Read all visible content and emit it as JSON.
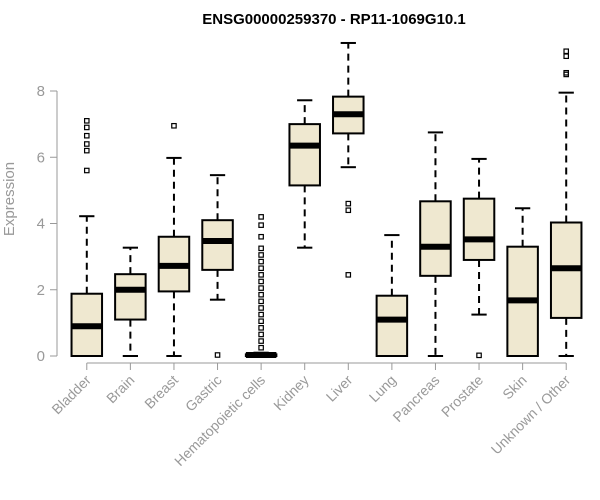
{
  "chart_data": {
    "type": "box",
    "title": "ENSG00000259370 - RP11-1069G10.1",
    "xlabel": "",
    "ylabel": "Expression",
    "ylim": [
      0,
      9.6
    ],
    "yticks": [
      0,
      2,
      4,
      6,
      8
    ],
    "box_fill": "#efe8d0",
    "categories": [
      "Bladder",
      "Brain",
      "Breast",
      "Gastric",
      "Hematopoietic cells",
      "Kidney",
      "Liver",
      "Lung",
      "Pancreas",
      "Prostate",
      "Skin",
      "Unknown / Other"
    ],
    "boxes": [
      {
        "min": 0,
        "q1": 0,
        "median": 0.9,
        "q3": 1.88,
        "max": 4.22,
        "outliers": [
          5.6,
          6.2,
          6.4,
          6.65,
          6.9,
          7.1
        ]
      },
      {
        "min": 0,
        "q1": 1.1,
        "median": 2.0,
        "q3": 2.47,
        "max": 3.27,
        "outliers": []
      },
      {
        "min": 0,
        "q1": 1.95,
        "median": 2.72,
        "q3": 3.6,
        "max": 5.98,
        "outliers": [
          6.95
        ]
      },
      {
        "min": 1.7,
        "q1": 2.6,
        "median": 3.47,
        "q3": 4.1,
        "max": 5.46,
        "outliers": [
          0.03
        ]
      },
      {
        "min": 0,
        "q1": 0,
        "median": 0.03,
        "q3": 0.05,
        "max": 0.1,
        "outliers": [
          0.25,
          0.45,
          0.65,
          0.85,
          1.05,
          1.25,
          1.45,
          1.65,
          1.85,
          2.05,
          2.25,
          2.45,
          2.65,
          2.85,
          3.05,
          3.25,
          3.6,
          3.95,
          4.2
        ]
      },
      {
        "min": 3.27,
        "q1": 5.15,
        "median": 6.35,
        "q3": 7.0,
        "max": 7.72,
        "outliers": []
      },
      {
        "min": 5.7,
        "q1": 6.72,
        "median": 7.3,
        "q3": 7.83,
        "max": 9.45,
        "outliers": [
          2.45,
          4.4,
          4.6
        ]
      },
      {
        "min": 0,
        "q1": 0,
        "median": 1.1,
        "q3": 1.82,
        "max": 3.65,
        "outliers": []
      },
      {
        "min": 0,
        "q1": 2.42,
        "median": 3.3,
        "q3": 4.67,
        "max": 6.75,
        "outliers": []
      },
      {
        "min": 1.25,
        "q1": 2.9,
        "median": 3.52,
        "q3": 4.75,
        "max": 5.95,
        "outliers": [
          0.02
        ]
      },
      {
        "min": 0,
        "q1": 0,
        "median": 1.68,
        "q3": 3.3,
        "max": 4.46,
        "outliers": []
      },
      {
        "min": 0,
        "q1": 1.15,
        "median": 2.65,
        "q3": 4.03,
        "max": 7.95,
        "outliers": [
          8.5,
          8.55,
          9.05,
          9.2
        ]
      }
    ]
  }
}
